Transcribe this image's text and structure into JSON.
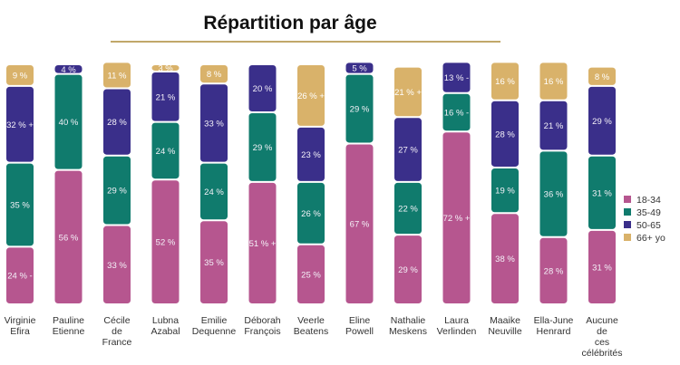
{
  "colors": {
    "series": [
      "#b6568f",
      "#107b6d",
      "#3a2f8a",
      "#d9b26a"
    ],
    "title_rule": "#c1a86a"
  },
  "chart_data": {
    "type": "bar",
    "stacked": true,
    "percent": true,
    "title": "Répartition par âge",
    "xlabel": "",
    "ylabel": "",
    "ylim": [
      0,
      100
    ],
    "grid": false,
    "legend_position": "right",
    "categories": [
      [
        "Virginie",
        "Efira"
      ],
      [
        "Pauline",
        "Etienne"
      ],
      [
        "Cécile",
        "de",
        "France"
      ],
      [
        "Lubna",
        "Azabal"
      ],
      [
        "Emilie",
        "Dequenne"
      ],
      [
        "Déborah",
        "François"
      ],
      [
        "Veerle",
        "Beatens"
      ],
      [
        "Eline",
        "Powell"
      ],
      [
        "Nathalie",
        "Meskens"
      ],
      [
        "Laura",
        "Verlinden"
      ],
      [
        "Maaike",
        "Neuville"
      ],
      [
        "Ella-June",
        "Henrard"
      ],
      [
        "Aucune",
        "de",
        "ces",
        "célébrités"
      ]
    ],
    "series": [
      {
        "name": "18-34",
        "values": [
          24,
          56,
          33,
          52,
          35,
          51,
          25,
          67,
          29,
          72,
          38,
          28,
          31
        ],
        "labels": [
          "24 % -",
          "56 %",
          "33 %",
          "52 %",
          "35 %",
          "51 % +",
          "25 %",
          "67 %",
          "29 %",
          "72 % +",
          "38 %",
          "28 %",
          "31 %"
        ]
      },
      {
        "name": "35-49",
        "values": [
          35,
          40,
          29,
          24,
          24,
          29,
          26,
          29,
          22,
          16,
          19,
          36,
          31
        ],
        "labels": [
          "35 %",
          "40 %",
          "29 %",
          "24 %",
          "24 %",
          "29 %",
          "26 %",
          "29 %",
          "22 %",
          "16 % -",
          "19 %",
          "36 %",
          "31 %"
        ]
      },
      {
        "name": "50-65",
        "values": [
          32,
          4,
          28,
          21,
          33,
          20,
          23,
          5,
          27,
          13,
          28,
          21,
          29
        ],
        "labels": [
          "32 % +",
          "4 %",
          "28 %",
          "21 %",
          "33 %",
          "20 %",
          "23 %",
          "5 %",
          "27 %",
          "13 % -",
          "28 %",
          "21 %",
          "29 %"
        ]
      },
      {
        "name": "66+ yo",
        "values": [
          9,
          0,
          11,
          3,
          8,
          0,
          26,
          0,
          21,
          0,
          16,
          16,
          8
        ],
        "labels": [
          "9 %",
          "",
          "11 %",
          "3 %",
          "8 %",
          "",
          "26 % +",
          "",
          "21 % +",
          "",
          "16 %",
          "16 %",
          "8 %"
        ]
      }
    ]
  }
}
